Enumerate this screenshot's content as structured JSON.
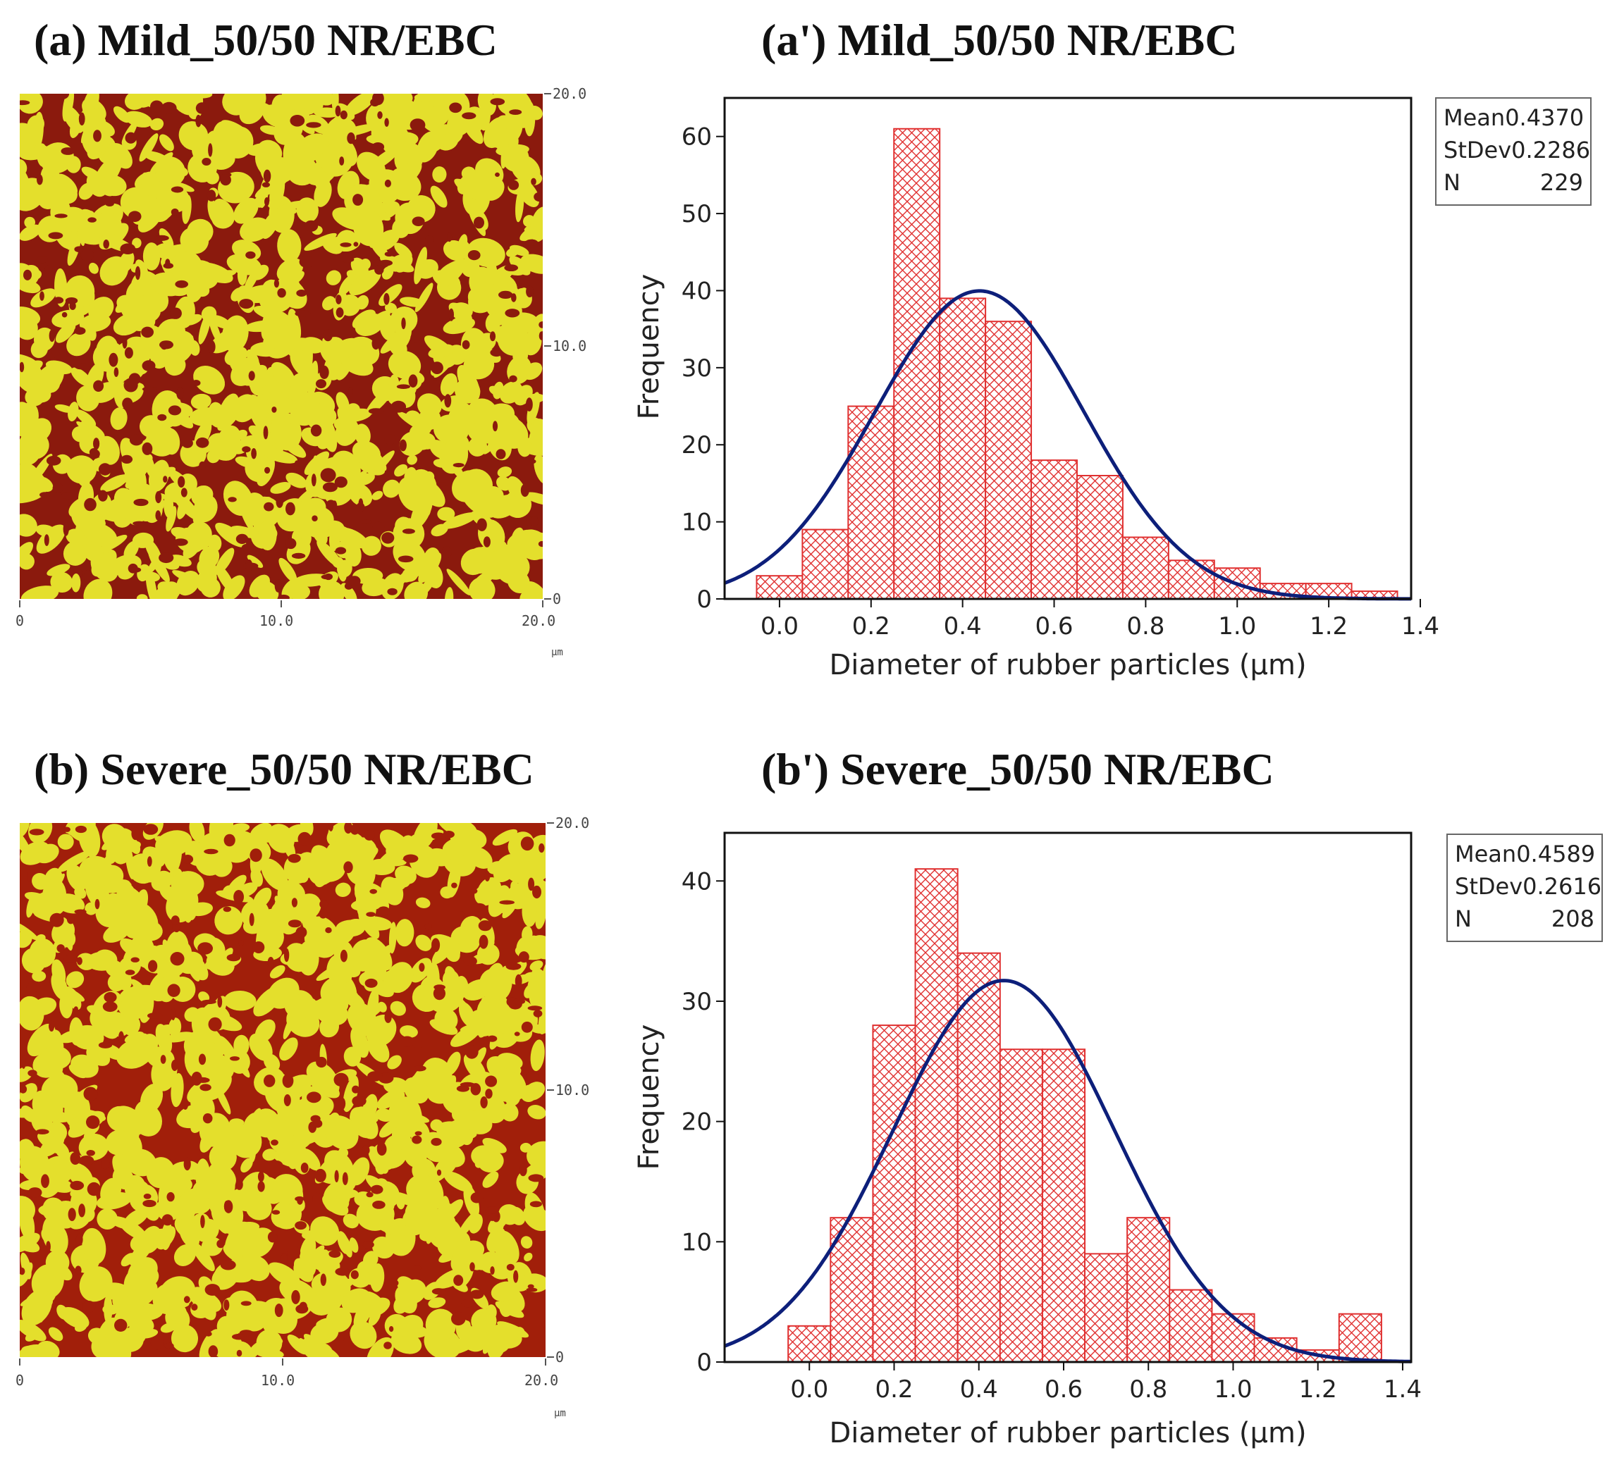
{
  "panels": {
    "a": {
      "title": "(a) Mild_50/50 NR/EBC"
    },
    "a_prime": {
      "title": "(a') Mild_50/50 NR/EBC"
    },
    "b": {
      "title": "(b) Severe_50/50 NR/EBC"
    },
    "b_prime": {
      "title": "(b') Severe_50/50 NR/EBC"
    }
  },
  "afm": {
    "x_ticks": [
      "0",
      "10.0",
      "20.0"
    ],
    "y_ticks": [
      "20.0",
      "10.0",
      "0"
    ],
    "unit": "μm",
    "colors": {
      "matrix": "#8b1a0d",
      "matrix_severe": "#a11f0a",
      "phase": "#e4df2c"
    }
  },
  "chart_data": [
    {
      "type": "bar",
      "title": "(a') Mild_50/50 NR/EBC",
      "xlabel": "Diameter of rubber particles (μm)",
      "ylabel": "Frequency",
      "bin_width": 0.1,
      "bin_centers": [
        0.0,
        0.1,
        0.2,
        0.3,
        0.4,
        0.5,
        0.6,
        0.7,
        0.8,
        0.9,
        1.0,
        1.1,
        1.2,
        1.3
      ],
      "values": [
        3,
        9,
        25,
        61,
        39,
        36,
        18,
        16,
        8,
        5,
        4,
        2,
        2,
        1
      ],
      "xlim": [
        -0.12,
        1.38
      ],
      "ylim": [
        0,
        65
      ],
      "x_ticks": [
        0.0,
        0.2,
        0.4,
        0.6,
        0.8,
        1.0,
        1.2,
        1.4
      ],
      "x_tick_labels": [
        "0.0",
        "0.2",
        "0.4",
        "0.6",
        "0.8",
        "1.0",
        "1.2",
        "1.4"
      ],
      "y_ticks": [
        0,
        10,
        20,
        30,
        40,
        50,
        60
      ],
      "fit": {
        "type": "normal",
        "mean": 0.437,
        "stdev": 0.2286,
        "n": 229
      },
      "stats": [
        {
          "label": "Mean",
          "value": "0.4370"
        },
        {
          "label": "StDev",
          "value": "0.2286"
        },
        {
          "label": "N",
          "value": "229"
        }
      ],
      "colors": {
        "bar": "#e03030",
        "fit": "#0d1f7a"
      }
    },
    {
      "type": "bar",
      "title": "(b') Severe_50/50 NR/EBC",
      "xlabel": "Diameter of rubber particles (μm)",
      "ylabel": "Frequency",
      "bin_width": 0.1,
      "bin_centers": [
        0.0,
        0.1,
        0.2,
        0.3,
        0.4,
        0.5,
        0.6,
        0.7,
        0.8,
        0.9,
        1.0,
        1.1,
        1.2,
        1.3
      ],
      "values": [
        3,
        12,
        28,
        41,
        34,
        26,
        26,
        9,
        12,
        6,
        4,
        2,
        1,
        4
      ],
      "xlim": [
        -0.2,
        1.42
      ],
      "ylim": [
        0,
        44
      ],
      "x_ticks": [
        0.0,
        0.2,
        0.4,
        0.6,
        0.8,
        1.0,
        1.2,
        1.4
      ],
      "x_tick_labels": [
        "0.0",
        "0.2",
        "0.4",
        "0.6",
        "0.8",
        "1.0",
        "1.2",
        "1.4"
      ],
      "y_ticks": [
        0,
        10,
        20,
        30,
        40
      ],
      "fit": {
        "type": "normal",
        "mean": 0.4589,
        "stdev": 0.2616,
        "n": 208
      },
      "stats": [
        {
          "label": "Mean",
          "value": "0.4589"
        },
        {
          "label": "StDev",
          "value": "0.2616"
        },
        {
          "label": "N",
          "value": "208"
        }
      ],
      "colors": {
        "bar": "#e03030",
        "fit": "#0d1f7a"
      }
    }
  ]
}
